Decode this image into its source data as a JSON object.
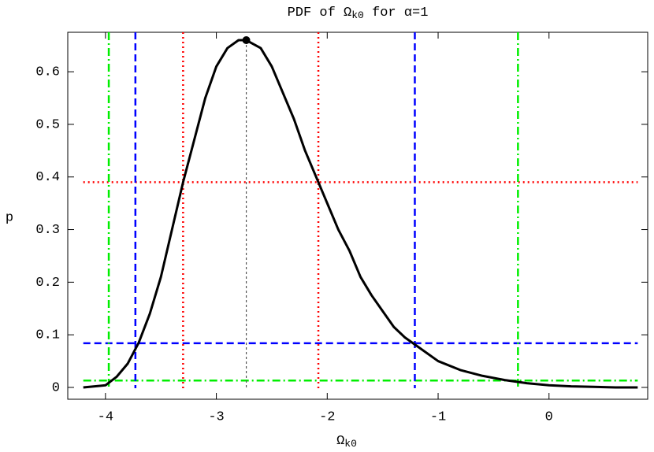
{
  "chart_data": {
    "type": "line",
    "title": [
      "PDF of Ω",
      "k0",
      " for α=1"
    ],
    "xlabel": [
      "Ω",
      "k0"
    ],
    "ylabel": "p",
    "xlim": [
      -4.34,
      0.89
    ],
    "ylim": [
      -0.0225,
      0.675
    ],
    "xticks": [
      -4,
      -3,
      -2,
      -1,
      0
    ],
    "yticks": [
      0,
      0.1,
      0.2,
      0.3,
      0.4,
      0.5,
      0.6
    ],
    "series": [
      {
        "color": "#000000",
        "x": [
          -4.2,
          -4.0,
          -3.9,
          -3.8,
          -3.7,
          -3.6,
          -3.5,
          -3.4,
          -3.3,
          -3.2,
          -3.1,
          -3.0,
          -2.9,
          -2.8,
          -2.73,
          -2.6,
          -2.5,
          -2.4,
          -2.3,
          -2.2,
          -2.1,
          -2.0,
          -1.9,
          -1.8,
          -1.7,
          -1.6,
          -1.5,
          -1.4,
          -1.3,
          -1.2,
          -1.0,
          -0.8,
          -0.6,
          -0.4,
          -0.2,
          0,
          0.2,
          0.4,
          0.6,
          0.8
        ],
        "values": [
          0,
          0.004,
          0.02,
          0.045,
          0.085,
          0.14,
          0.21,
          0.3,
          0.39,
          0.47,
          0.55,
          0.61,
          0.645,
          0.66,
          0.66,
          0.645,
          0.61,
          0.56,
          0.51,
          0.45,
          0.4,
          0.35,
          0.3,
          0.26,
          0.21,
          0.175,
          0.145,
          0.115,
          0.095,
          0.08,
          0.05,
          0.033,
          0.022,
          0.014,
          0.008,
          0.004,
          0.002,
          0.001,
          0,
          0
        ]
      }
    ],
    "mode": {
      "x": -2.73,
      "y": 0.66,
      "color": "#555555"
    },
    "vlines": [
      {
        "x": -3.3,
        "color": "#ff0000",
        "style": "dotted"
      },
      {
        "x": -2.08,
        "color": "#ff0000",
        "style": "dotted"
      },
      {
        "x": -3.73,
        "color": "#0000ff",
        "style": "dashed"
      },
      {
        "x": -1.21,
        "color": "#0000ff",
        "style": "dashed"
      },
      {
        "x": -3.97,
        "color": "#00ee00",
        "style": "dashdot"
      },
      {
        "x": -0.28,
        "color": "#00ee00",
        "style": "dashdot"
      }
    ],
    "hlines": [
      {
        "y": 0.39,
        "color": "#ff0000",
        "style": "dotted"
      },
      {
        "y": 0.084,
        "color": "#0000ff",
        "style": "dashed"
      },
      {
        "y": 0.013,
        "color": "#00ee00",
        "style": "dashdot"
      }
    ]
  }
}
